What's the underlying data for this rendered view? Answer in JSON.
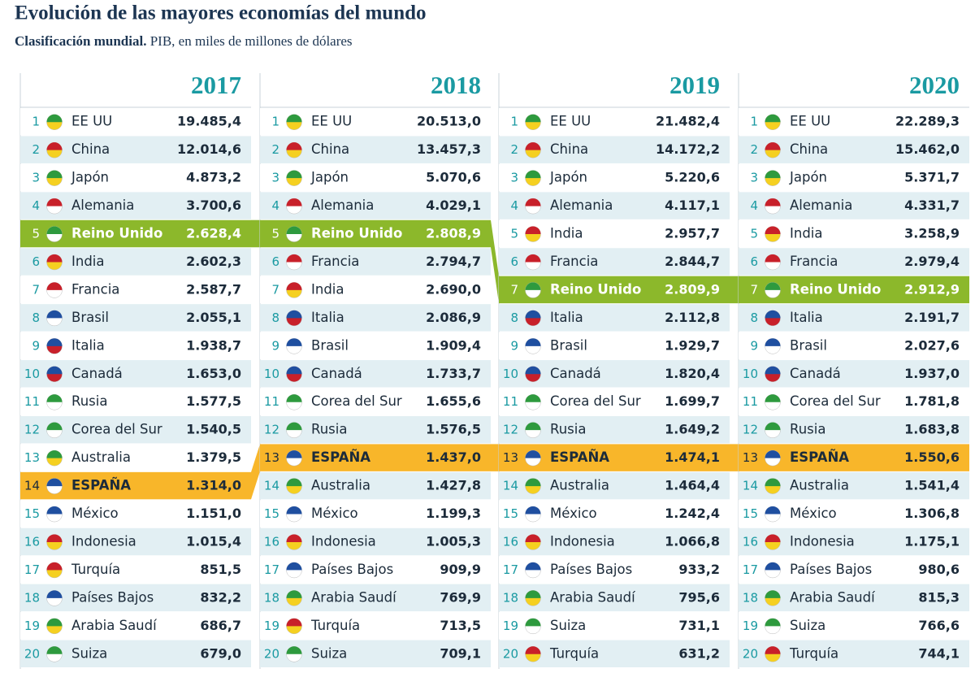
{
  "header": {
    "title": "Evolución de las mayores economías del mundo",
    "subtitle_bold": "Clasificación mundial.",
    "subtitle": "PIB, en miles de millones de dólares"
  },
  "columns": [
    {
      "year": "2017",
      "rows": [
        {
          "rank": "1",
          "country": "EE UU",
          "value": "19.485,4"
        },
        {
          "rank": "2",
          "country": "China",
          "value": "12.014,6"
        },
        {
          "rank": "3",
          "country": "Japón",
          "value": "4.873,2"
        },
        {
          "rank": "4",
          "country": "Alemania",
          "value": "3.700,6"
        },
        {
          "rank": "5",
          "country": "Reino Unido",
          "value": "2.628,4",
          "color": "#8cb82b",
          "text_color": "#ffffff"
        },
        {
          "rank": "6",
          "country": "India",
          "value": "2.602,3"
        },
        {
          "rank": "7",
          "country": "Francia",
          "value": "2.587,7"
        },
        {
          "rank": "8",
          "country": "Brasil",
          "value": "2.055,1"
        },
        {
          "rank": "9",
          "country": "Italia",
          "value": "1.938,7"
        },
        {
          "rank": "10",
          "country": "Canadá",
          "value": "1.653,0"
        },
        {
          "rank": "11",
          "country": "Rusia",
          "value": "1.577,5"
        },
        {
          "rank": "12",
          "country": "Corea del Sur",
          "value": "1.540,5"
        },
        {
          "rank": "13",
          "country": "Australia",
          "value": "1.379,5"
        },
        {
          "rank": "14",
          "country": "ESPAÑA",
          "value": "1.314,0",
          "color": "#f8b62a",
          "text_color": "#1c2b3a"
        },
        {
          "rank": "15",
          "country": "México",
          "value": "1.151,0"
        },
        {
          "rank": "16",
          "country": "Indonesia",
          "value": "1.015,4"
        },
        {
          "rank": "17",
          "country": "Turquía",
          "value": "851,5"
        },
        {
          "rank": "18",
          "country": "Países Bajos",
          "value": "832,2"
        },
        {
          "rank": "19",
          "country": "Arabia Saudí",
          "value": "686,7"
        },
        {
          "rank": "20",
          "country": "Suiza",
          "value": "679,0"
        }
      ]
    },
    {
      "year": "2018",
      "rows": [
        {
          "rank": "1",
          "country": "EE UU",
          "value": "20.513,0"
        },
        {
          "rank": "2",
          "country": "China",
          "value": "13.457,3"
        },
        {
          "rank": "3",
          "country": "Japón",
          "value": "5.070,6"
        },
        {
          "rank": "4",
          "country": "Alemania",
          "value": "4.029,1"
        },
        {
          "rank": "5",
          "country": "Reino Unido",
          "value": "2.808,9",
          "color": "#8cb82b",
          "text_color": "#ffffff"
        },
        {
          "rank": "6",
          "country": "Francia",
          "value": "2.794,7"
        },
        {
          "rank": "7",
          "country": "India",
          "value": "2.690,0"
        },
        {
          "rank": "8",
          "country": "Italia",
          "value": "2.086,9"
        },
        {
          "rank": "9",
          "country": "Brasil",
          "value": "1.909,4"
        },
        {
          "rank": "10",
          "country": "Canadá",
          "value": "1.733,7"
        },
        {
          "rank": "11",
          "country": "Corea del Sur",
          "value": "1.655,6"
        },
        {
          "rank": "12",
          "country": "Rusia",
          "value": "1.576,5"
        },
        {
          "rank": "13",
          "country": "ESPAÑA",
          "value": "1.437,0",
          "color": "#f8b62a",
          "text_color": "#1c2b3a"
        },
        {
          "rank": "14",
          "country": "Australia",
          "value": "1.427,8"
        },
        {
          "rank": "15",
          "country": "México",
          "value": "1.199,3"
        },
        {
          "rank": "16",
          "country": "Indonesia",
          "value": "1.005,3"
        },
        {
          "rank": "17",
          "country": "Países Bajos",
          "value": "909,9"
        },
        {
          "rank": "18",
          "country": "Arabia Saudí",
          "value": "769,9"
        },
        {
          "rank": "19",
          "country": "Turquía",
          "value": "713,5"
        },
        {
          "rank": "20",
          "country": "Suiza",
          "value": "709,1"
        }
      ]
    },
    {
      "year": "2019",
      "rows": [
        {
          "rank": "1",
          "country": "EE UU",
          "value": "21.482,4"
        },
        {
          "rank": "2",
          "country": "China",
          "value": "14.172,2"
        },
        {
          "rank": "3",
          "country": "Japón",
          "value": "5.220,6"
        },
        {
          "rank": "4",
          "country": "Alemania",
          "value": "4.117,1"
        },
        {
          "rank": "5",
          "country": "India",
          "value": "2.957,7"
        },
        {
          "rank": "6",
          "country": "Francia",
          "value": "2.844,7"
        },
        {
          "rank": "7",
          "country": "Reino Unido",
          "value": "2.809,9",
          "color": "#8cb82b",
          "text_color": "#ffffff"
        },
        {
          "rank": "8",
          "country": "Italia",
          "value": "2.112,8"
        },
        {
          "rank": "9",
          "country": "Brasil",
          "value": "1.929,7"
        },
        {
          "rank": "10",
          "country": "Canadá",
          "value": "1.820,4"
        },
        {
          "rank": "11",
          "country": "Corea del Sur",
          "value": "1.699,7"
        },
        {
          "rank": "12",
          "country": "Rusia",
          "value": "1.649,2"
        },
        {
          "rank": "13",
          "country": "ESPAÑA",
          "value": "1.474,1",
          "color": "#f8b62a",
          "text_color": "#1c2b3a"
        },
        {
          "rank": "14",
          "country": "Australia",
          "value": "1.464,4"
        },
        {
          "rank": "15",
          "country": "México",
          "value": "1.242,4"
        },
        {
          "rank": "16",
          "country": "Indonesia",
          "value": "1.066,8"
        },
        {
          "rank": "17",
          "country": "Países Bajos",
          "value": "933,2"
        },
        {
          "rank": "18",
          "country": "Arabia Saudí",
          "value": "795,6"
        },
        {
          "rank": "19",
          "country": "Suiza",
          "value": "731,1"
        },
        {
          "rank": "20",
          "country": "Turquía",
          "value": "631,2"
        }
      ]
    },
    {
      "year": "2020",
      "rows": [
        {
          "rank": "1",
          "country": "EE UU",
          "value": "22.289,3"
        },
        {
          "rank": "2",
          "country": "China",
          "value": "15.462,0"
        },
        {
          "rank": "3",
          "country": "Japón",
          "value": "5.371,7"
        },
        {
          "rank": "4",
          "country": "Alemania",
          "value": "4.331,7"
        },
        {
          "rank": "5",
          "country": "India",
          "value": "3.258,9"
        },
        {
          "rank": "6",
          "country": "Francia",
          "value": "2.979,4"
        },
        {
          "rank": "7",
          "country": "Reino Unido",
          "value": "2.912,9",
          "color": "#8cb82b",
          "text_color": "#ffffff"
        },
        {
          "rank": "8",
          "country": "Italia",
          "value": "2.191,7"
        },
        {
          "rank": "9",
          "country": "Brasil",
          "value": "2.027,6"
        },
        {
          "rank": "10",
          "country": "Canadá",
          "value": "1.937,0"
        },
        {
          "rank": "11",
          "country": "Corea del Sur",
          "value": "1.781,8"
        },
        {
          "rank": "12",
          "country": "Rusia",
          "value": "1.683,8"
        },
        {
          "rank": "13",
          "country": "ESPAÑA",
          "value": "1.550,6",
          "color": "#f8b62a",
          "text_color": "#1c2b3a"
        },
        {
          "rank": "14",
          "country": "Australia",
          "value": "1.541,4"
        },
        {
          "rank": "15",
          "country": "México",
          "value": "1.306,8"
        },
        {
          "rank": "16",
          "country": "Indonesia",
          "value": "1.175,1"
        },
        {
          "rank": "17",
          "country": "Países Bajos",
          "value": "980,6"
        },
        {
          "rank": "18",
          "country": "Arabia Saudí",
          "value": "815,3"
        },
        {
          "rank": "19",
          "country": "Suiza",
          "value": "766,6"
        },
        {
          "rank": "20",
          "country": "Turquía",
          "value": "744,1"
        }
      ]
    }
  ]
}
